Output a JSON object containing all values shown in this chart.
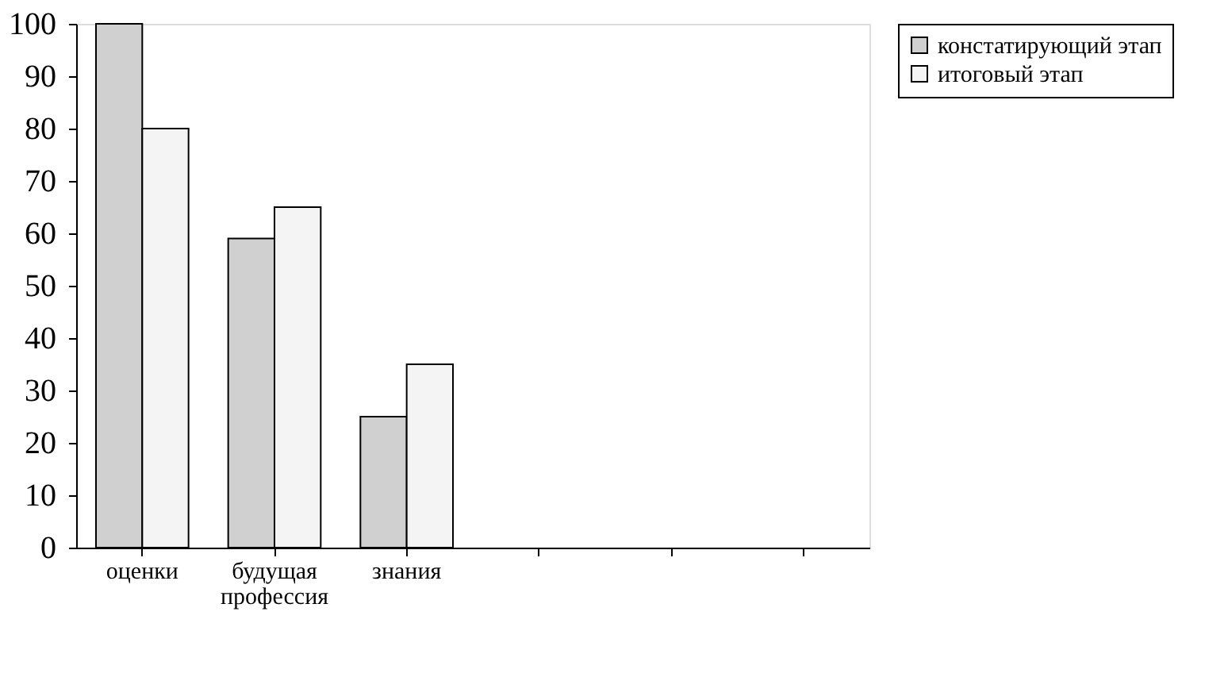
{
  "chart_data": {
    "type": "bar",
    "categories": [
      "оценки",
      "будущая профессия",
      "знания",
      null,
      null,
      null
    ],
    "series": [
      {
        "name": "констатирующий этап",
        "color": "#d0d0d0",
        "values": [
          100,
          59,
          25,
          null,
          null,
          null
        ]
      },
      {
        "name": "итоговый этап",
        "color": "#f4f4f4",
        "values": [
          80,
          65,
          35,
          null,
          null,
          null
        ]
      }
    ],
    "ylim": [
      0,
      100
    ],
    "yticks": [
      0,
      10,
      20,
      30,
      40,
      50,
      60,
      70,
      80,
      90,
      100
    ],
    "grid": false,
    "legend": "right"
  }
}
